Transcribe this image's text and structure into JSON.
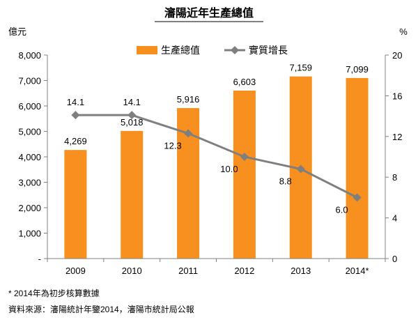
{
  "chart_data": {
    "type": "bar+line",
    "title": "瀋陽近年生產總值",
    "categories": [
      "2009",
      "2010",
      "2011",
      "2012",
      "2013",
      "2014*"
    ],
    "series": [
      {
        "name": "生產總值",
        "type": "bar",
        "axis": "left",
        "values": [
          4269,
          5018,
          5916,
          6603,
          7159,
          7099
        ],
        "labels": [
          "4,269",
          "5,018",
          "5,916",
          "6,603",
          "7,159",
          "7,099"
        ]
      },
      {
        "name": "實質增長",
        "type": "line",
        "axis": "right",
        "values": [
          14.1,
          14.1,
          12.3,
          10.0,
          8.8,
          6.0
        ],
        "labels": [
          "14.1",
          "14.1",
          "12.3",
          "10.0",
          "8.8",
          "6.0"
        ]
      }
    ],
    "y_left": {
      "unit": "億元",
      "ylim": [
        0,
        8000
      ],
      "ticks": [
        "-",
        "1,000",
        "2,000",
        "3,000",
        "4,000",
        "5,000",
        "6,000",
        "7,000",
        "8,000"
      ]
    },
    "y_right": {
      "unit": "%",
      "ylim": [
        0,
        20
      ],
      "ticks": [
        "0",
        "4",
        "8",
        "12",
        "16",
        "20"
      ]
    },
    "legend_position": "top-center",
    "grid": false,
    "colors": {
      "bar": "#F7901E",
      "line": "#7F7F7F",
      "axis": "#808080"
    }
  },
  "notes": {
    "footnote": "* 2014年為初步核算數據",
    "source": "資料來源：瀋陽統計年鑒2014，瀋陽市統計局公報"
  }
}
